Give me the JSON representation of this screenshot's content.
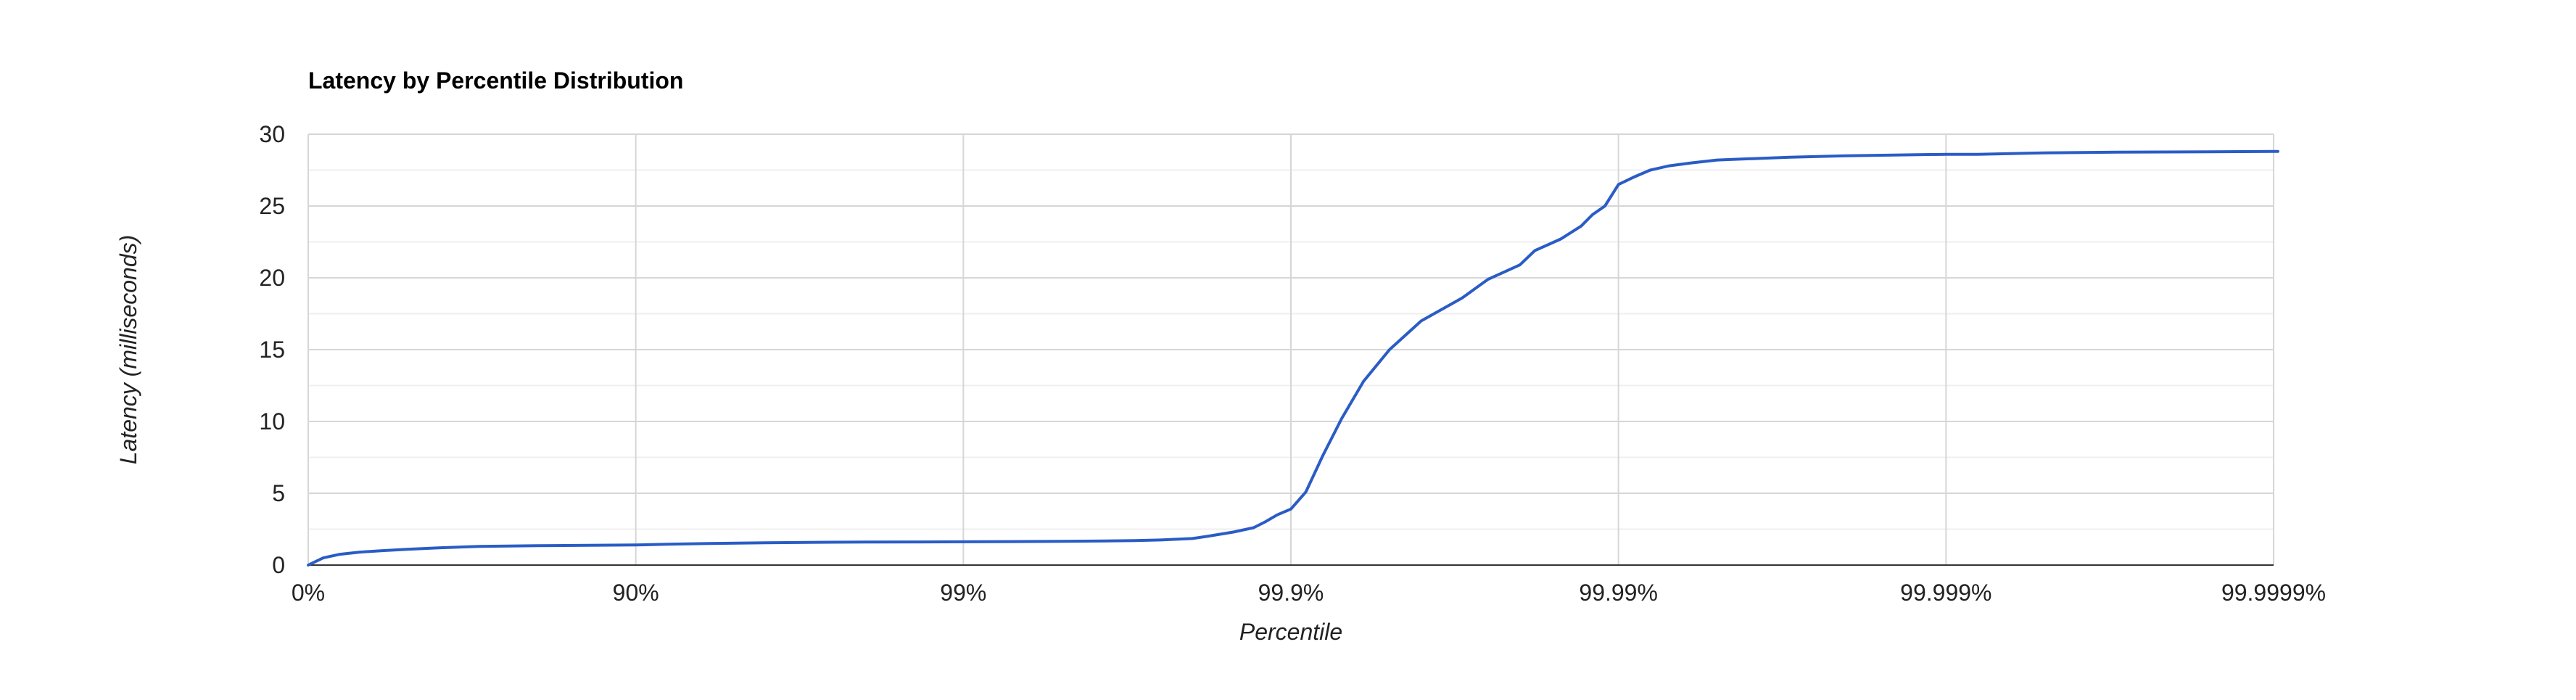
{
  "chart_data": {
    "type": "line",
    "title": "Latency by Percentile Distribution",
    "xlabel": "Percentile",
    "ylabel": "Latency (milliseconds)",
    "x_scale": "log-inverse-percentile",
    "x_ticks": [
      "0%",
      "90%",
      "99%",
      "99.9%",
      "99.99%",
      "99.999%",
      "99.9999%"
    ],
    "y_ticks": [
      0,
      5,
      10,
      15,
      20,
      25,
      30
    ],
    "ylim": [
      0,
      30
    ],
    "grid": true,
    "legend": "none",
    "series": [
      {
        "color": "#2a5cc6",
        "x": [
          0,
          10,
          20,
          30,
          40,
          50,
          60,
          70,
          80,
          90,
          92,
          94,
          96,
          97,
          98,
          99,
          99.5,
          99.7,
          99.75,
          99.8,
          99.82,
          99.85,
          99.87,
          99.88,
          99.89,
          99.9,
          99.91,
          99.92,
          99.93,
          99.94,
          99.95,
          99.96,
          99.97,
          99.975,
          99.98,
          99.982,
          99.985,
          99.987,
          99.988,
          99.989,
          99.99,
          99.991,
          99.992,
          99.993,
          99.994,
          99.995,
          99.997,
          99.998,
          99.999,
          99.9992,
          99.9995,
          99.9997,
          99.9999
        ],
        "y": [
          0,
          0.5,
          0.75,
          0.9,
          1.0,
          1.1,
          1.2,
          1.3,
          1.35,
          1.4,
          1.45,
          1.5,
          1.55,
          1.58,
          1.6,
          1.62,
          1.65,
          1.7,
          1.75,
          1.85,
          2.0,
          2.3,
          2.6,
          3.0,
          3.5,
          3.9,
          5.1,
          7.6,
          10.2,
          12.8,
          15.0,
          17.0,
          18.6,
          19.9,
          20.9,
          21.9,
          22.7,
          23.6,
          24.4,
          25.0,
          26.5,
          27.0,
          27.5,
          27.8,
          28.0,
          28.2,
          28.4,
          28.5,
          28.6,
          28.6,
          28.7,
          28.75,
          28.8
        ]
      }
    ]
  }
}
